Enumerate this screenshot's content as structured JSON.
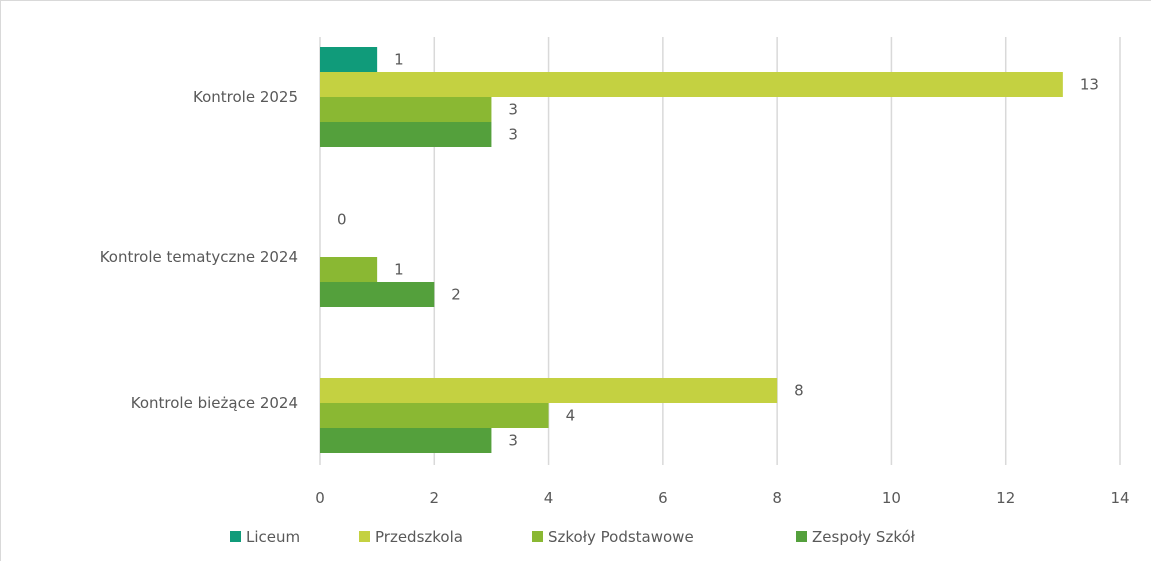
{
  "chart_data": {
    "type": "bar",
    "orientation": "horizontal",
    "title": "",
    "xlabel": "",
    "ylabel": "",
    "categories": [
      "Kontrole 2025",
      "Kontrole tematyczne 2024",
      "Kontrole bieżące 2024"
    ],
    "series": [
      {
        "name": "Liceum",
        "color": "#109b7a",
        "values": [
          1,
          0,
          null
        ]
      },
      {
        "name": "Przedszkola",
        "color": "#c4d141",
        "values": [
          13,
          null,
          8
        ]
      },
      {
        "name": "Szkoły Podstawowe",
        "color": "#8ab833",
        "values": [
          3,
          1,
          4
        ]
      },
      {
        "name": "Zespoły Szkół",
        "color": "#54a03c",
        "values": [
          3,
          2,
          3
        ]
      }
    ],
    "xlim": [
      0,
      14
    ],
    "xticks": [
      0,
      2,
      4,
      6,
      8,
      10,
      12,
      14
    ],
    "grid": "vertical",
    "legend_position": "bottom",
    "data_labels": true
  }
}
